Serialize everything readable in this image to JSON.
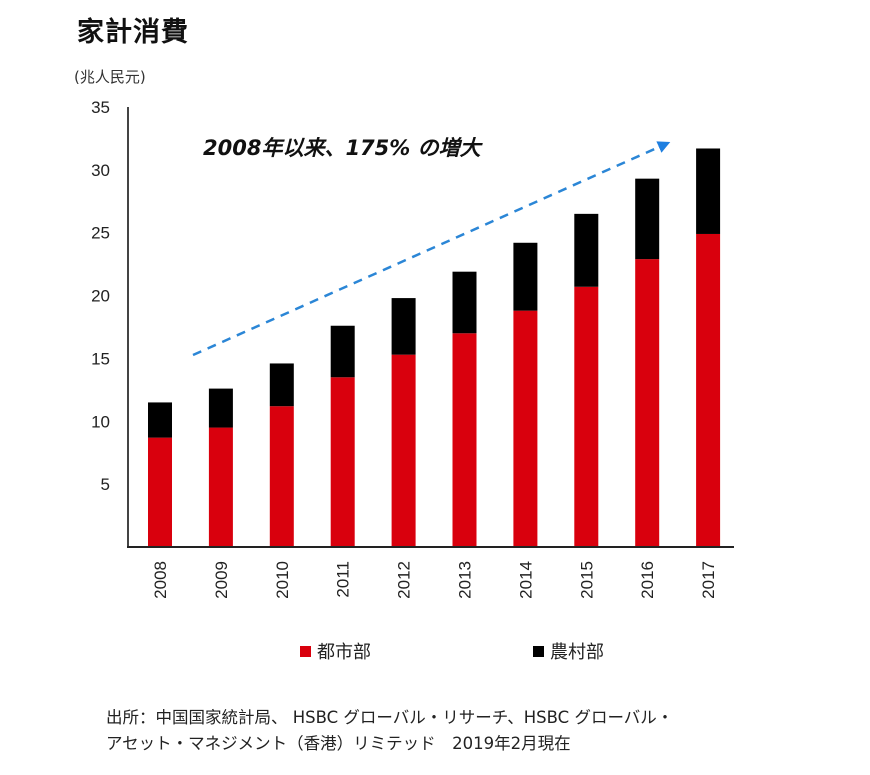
{
  "header": {
    "title": "家計消費",
    "unit_label": "(兆人民元)"
  },
  "chart_data": {
    "type": "bar",
    "stacked": true,
    "title": "家計消費",
    "xlabel": "",
    "ylabel": "(兆人民元)",
    "ylim": [
      0,
      35
    ],
    "yticks": [
      5,
      10,
      15,
      20,
      25,
      30,
      35
    ],
    "grid": false,
    "categories": [
      "2008",
      "2009",
      "2010",
      "2011",
      "2012",
      "2013",
      "2014",
      "2015",
      "2016",
      "2017"
    ],
    "series": [
      {
        "name": "都市部",
        "color": "#d9000d",
        "values": [
          8.7,
          9.5,
          11.2,
          13.5,
          15.3,
          17.0,
          18.8,
          20.7,
          22.9,
          24.9
        ]
      },
      {
        "name": "農村部",
        "color": "#000000",
        "values": [
          2.8,
          3.1,
          3.4,
          4.1,
          4.5,
          4.9,
          5.4,
          5.8,
          6.4,
          6.8
        ]
      }
    ],
    "totals": [
      11.5,
      12.6,
      14.6,
      17.6,
      19.8,
      21.9,
      24.2,
      26.5,
      29.3,
      31.7
    ],
    "annotation": {
      "text": "2008年以来、175% の増大",
      "arrow": "dashed trend arrow rising from 2009 to 2017",
      "arrow_color": "#2b86d6"
    },
    "legend": {
      "placement": "bottom",
      "entries": [
        "都市部",
        "農村部"
      ]
    }
  },
  "footer": {
    "source_line1": "出所：中国国家統計局、 HSBC グローバル・リサーチ、HSBC グローバル・",
    "source_line2": "アセット・マネジメント（香港）リミテッド　2019年2月現在"
  }
}
